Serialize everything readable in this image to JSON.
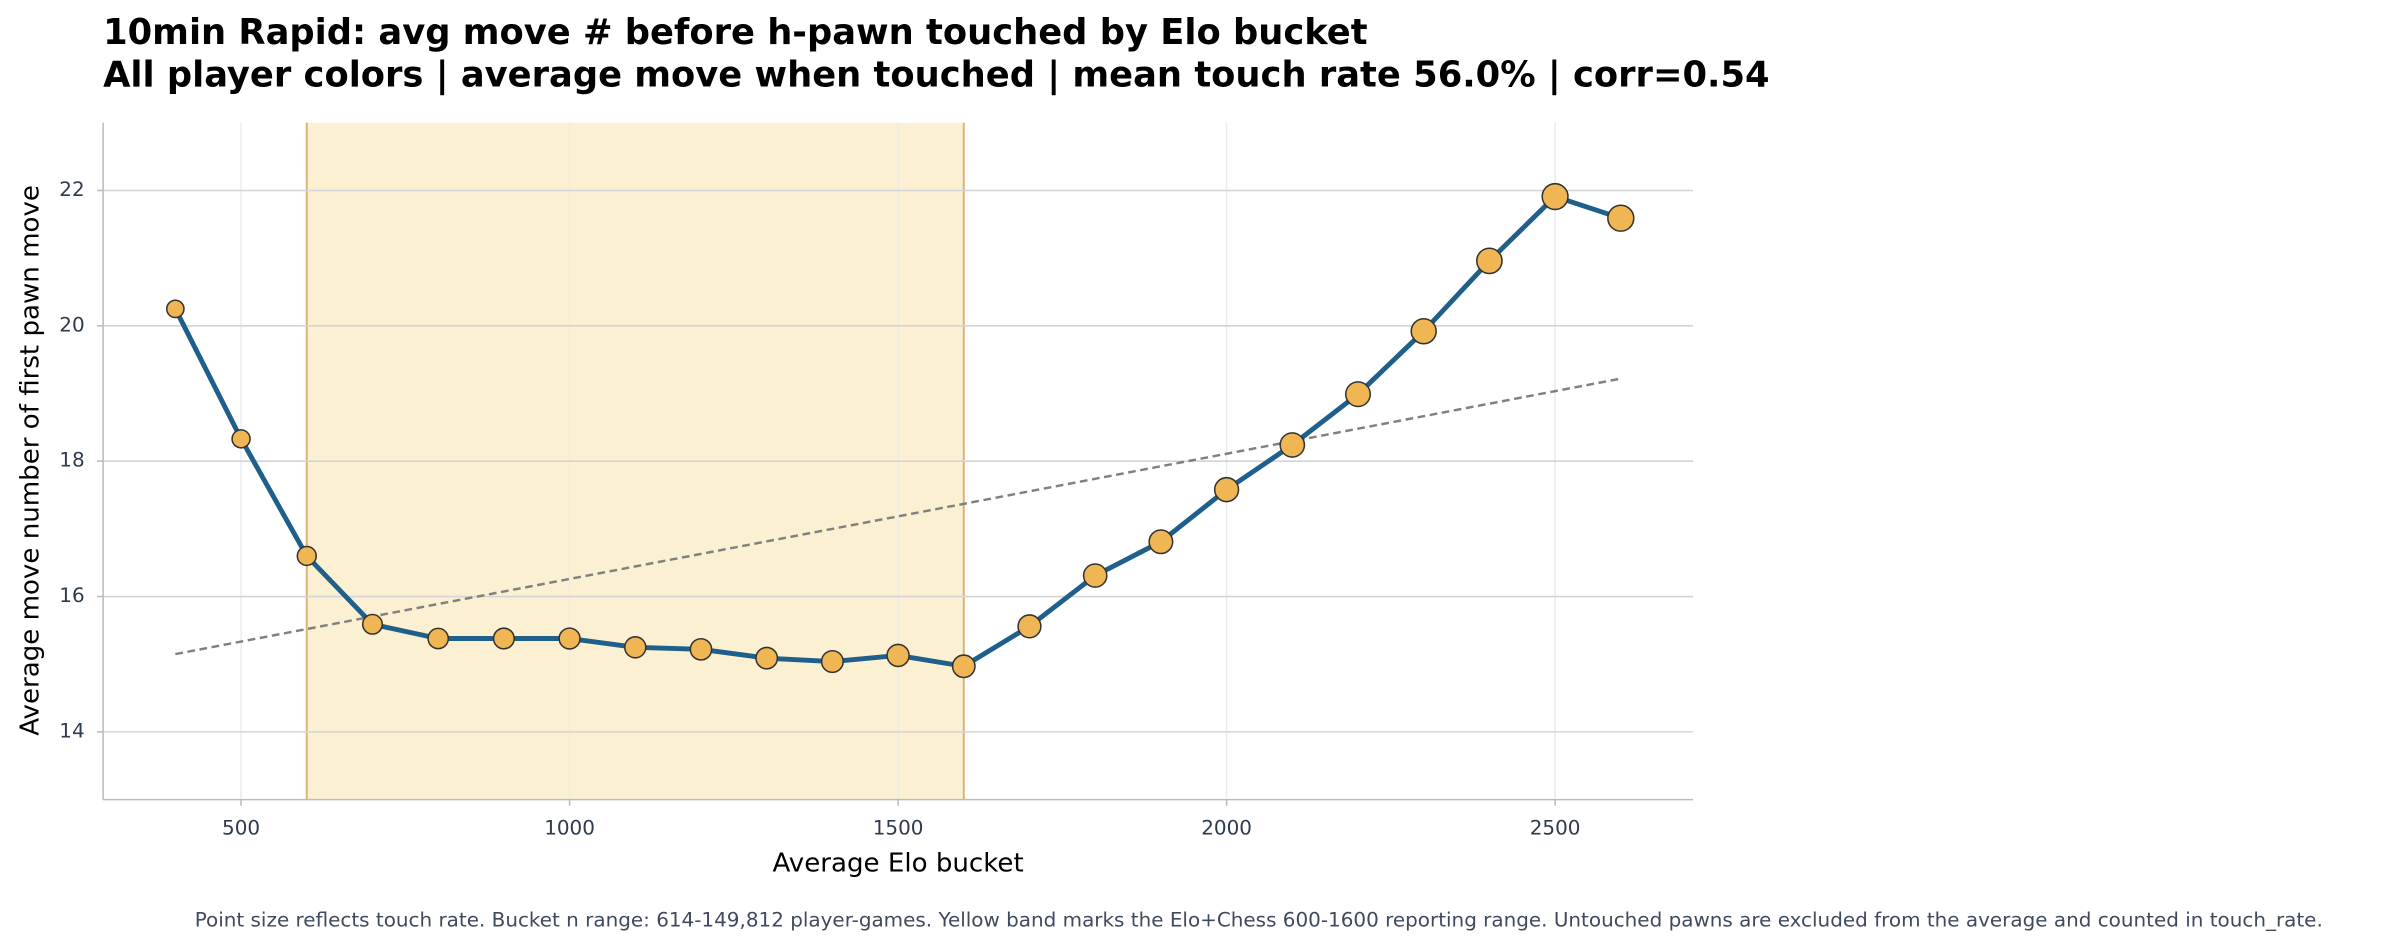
{
  "chart_data": {
    "type": "line",
    "title": "10min Rapid: avg move # before h-pawn touched by Elo bucket",
    "subtitle": "All player colors | average move when touched | mean touch rate 56.0% | corr=0.54",
    "xlabel": "Average Elo bucket",
    "ylabel": "Average move number of first pawn move",
    "note": "Point size reflects touch rate. Bucket n range: 614-149,812 player-games. Yellow band marks the Elo+Chess 600-1600 reporting range. Untouched pawns are excluded from the average and counted in touch_rate.",
    "x": [
      400,
      500,
      600,
      700,
      800,
      900,
      1000,
      1100,
      1200,
      1300,
      1400,
      1500,
      1600,
      1700,
      1800,
      1900,
      2000,
      2100,
      2200,
      2300,
      2400,
      2500,
      2600
    ],
    "series": [
      {
        "name": "avg move",
        "color": "#1f5f8b",
        "marker_color": "#f0b654",
        "values": [
          20.25,
          18.33,
          16.6,
          15.59,
          15.38,
          15.38,
          15.38,
          15.25,
          15.22,
          15.09,
          15.04,
          15.13,
          14.97,
          15.56,
          16.31,
          16.81,
          17.58,
          18.24,
          18.99,
          19.92,
          20.96,
          21.91,
          21.59
        ],
        "touch_rate": [
          35,
          38,
          42,
          45,
          48,
          50,
          51,
          52,
          53,
          54,
          55,
          57,
          59,
          61,
          63,
          65,
          67,
          69,
          71,
          73,
          75,
          78,
          79
        ]
      }
    ],
    "trend": {
      "color": "#808080",
      "x": [
        400,
        2600
      ],
      "values": [
        15.15,
        19.22
      ]
    },
    "band": {
      "range": [
        600,
        1600
      ],
      "color": "#fbf0d1",
      "edge_color": "#d9b37a"
    },
    "xlim": [
      290,
      2710
    ],
    "ylim": [
      13,
      23
    ],
    "xticks": [
      500,
      1000,
      1500,
      2000,
      2500
    ],
    "yticks": [
      14,
      16,
      18,
      20,
      22
    ],
    "grid": true
  }
}
